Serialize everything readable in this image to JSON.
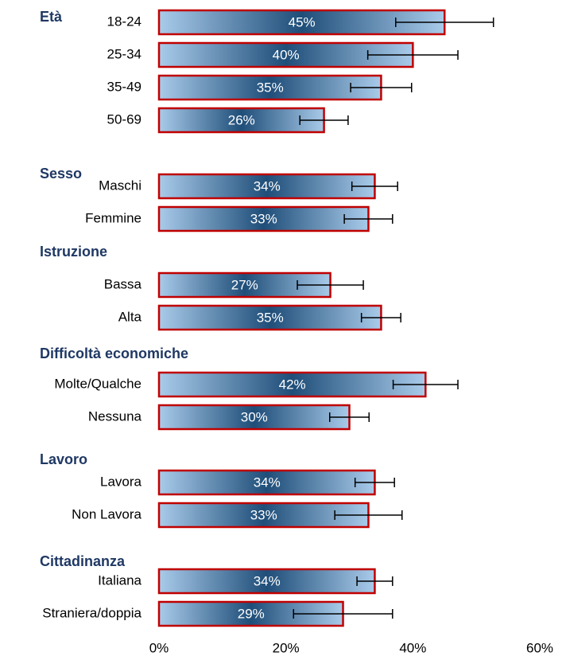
{
  "chart_data": {
    "type": "bar",
    "orientation": "horizontal",
    "bar_color": "#1f4e79",
    "bar_edge_color": "#c00000",
    "error_color": "#000000",
    "xlim": [
      0,
      60
    ],
    "xticks": [
      {
        "value": 0,
        "label": "0%"
      },
      {
        "value": 20,
        "label": "20%"
      },
      {
        "value": 40,
        "label": "40%"
      },
      {
        "value": 60,
        "label": "60%"
      }
    ],
    "groups": [
      {
        "name": "Età",
        "categories": [
          "18-24",
          "25-34",
          "35-49",
          "50-69"
        ],
        "values": [
          45,
          40,
          35,
          26
        ],
        "value_labels": [
          "45%",
          "40%",
          "35%",
          "26%"
        ],
        "errors": [
          7.7,
          7.1,
          4.8,
          3.8
        ]
      },
      {
        "name": "Sesso",
        "categories": [
          "Maschi",
          "Femmine"
        ],
        "values": [
          34,
          33
        ],
        "value_labels": [
          "34%",
          "33%"
        ],
        "errors": [
          3.6,
          3.8
        ]
      },
      {
        "name": "Istruzione",
        "categories": [
          "Bassa",
          "Alta"
        ],
        "values": [
          27,
          35
        ],
        "value_labels": [
          "27%",
          "35%"
        ],
        "errors": [
          5.2,
          3.1
        ]
      },
      {
        "name": "Difficoltà economiche",
        "categories": [
          "Molte/Qualche",
          "Nessuna"
        ],
        "values": [
          42,
          30
        ],
        "value_labels": [
          "42%",
          "30%"
        ],
        "errors": [
          5.1,
          3.1
        ]
      },
      {
        "name": "Lavoro",
        "categories": [
          "Lavora",
          "Non Lavora"
        ],
        "values": [
          34,
          33
        ],
        "value_labels": [
          "34%",
          "33%"
        ],
        "errors": [
          3.1,
          5.3
        ]
      },
      {
        "name": "Cittadinanza",
        "categories": [
          "Italiana",
          "Straniera/doppia"
        ],
        "values": [
          34,
          29
        ],
        "value_labels": [
          "34%",
          "29%"
        ],
        "errors": [
          2.8,
          7.8
        ]
      }
    ]
  }
}
